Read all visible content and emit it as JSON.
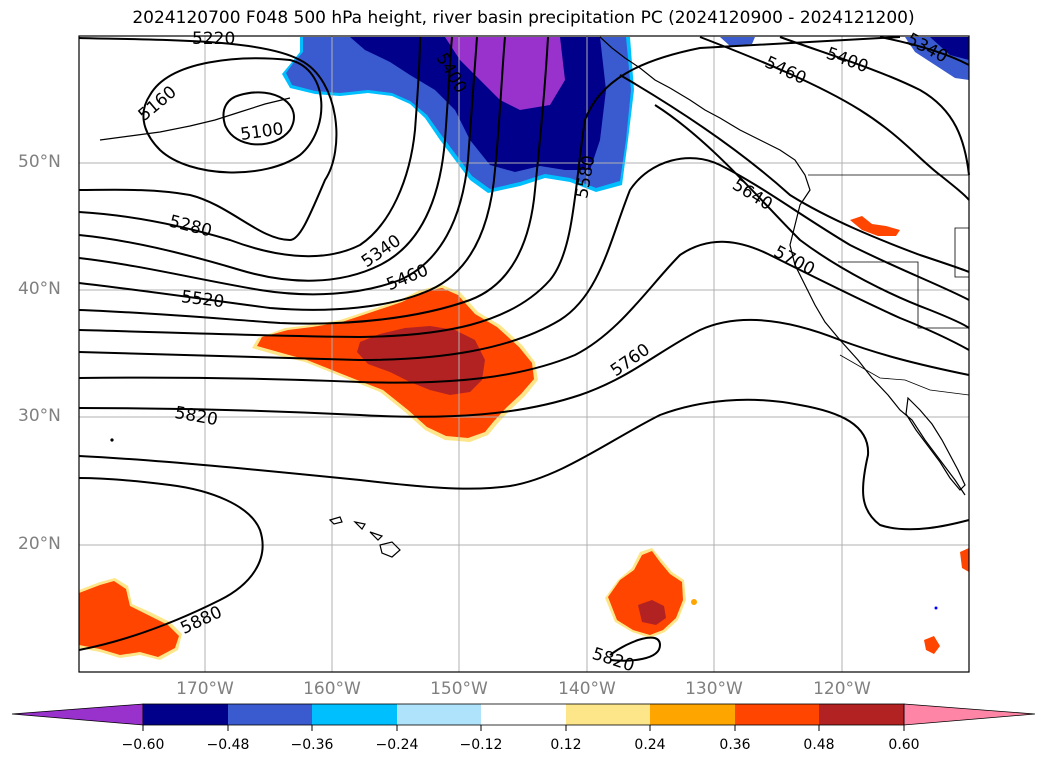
{
  "title": "2024120700 F048 500 hPa height, river basin precipitation PC (2024120900 - 2024121200)",
  "lat_labels": [
    "50°N",
    "40°N",
    "30°N",
    "20°N"
  ],
  "lon_labels": [
    "170°W",
    "160°W",
    "150°W",
    "140°W",
    "130°W",
    "120°W"
  ],
  "contour_labels": [
    "5220",
    "5160",
    "5100",
    "5400",
    "5460",
    "5400",
    "5340",
    "5580",
    "5640",
    "5280",
    "5340",
    "5460",
    "5700",
    "5520",
    "5760",
    "5820",
    "5880",
    "5820"
  ],
  "colorbar": {
    "ticks": [
      "−0.60",
      "−0.48",
      "−0.36",
      "−0.24",
      "−0.12",
      "0.12",
      "0.24",
      "0.36",
      "0.48",
      "0.60"
    ],
    "colors": [
      "#9932cc",
      "#00008b",
      "#3a5bd0",
      "#00bfff",
      "#afe3fb",
      "#ffffff",
      "#fde68a",
      "#ffa500",
      "#ff4500",
      "#b22222",
      "#ff85a6"
    ]
  }
}
